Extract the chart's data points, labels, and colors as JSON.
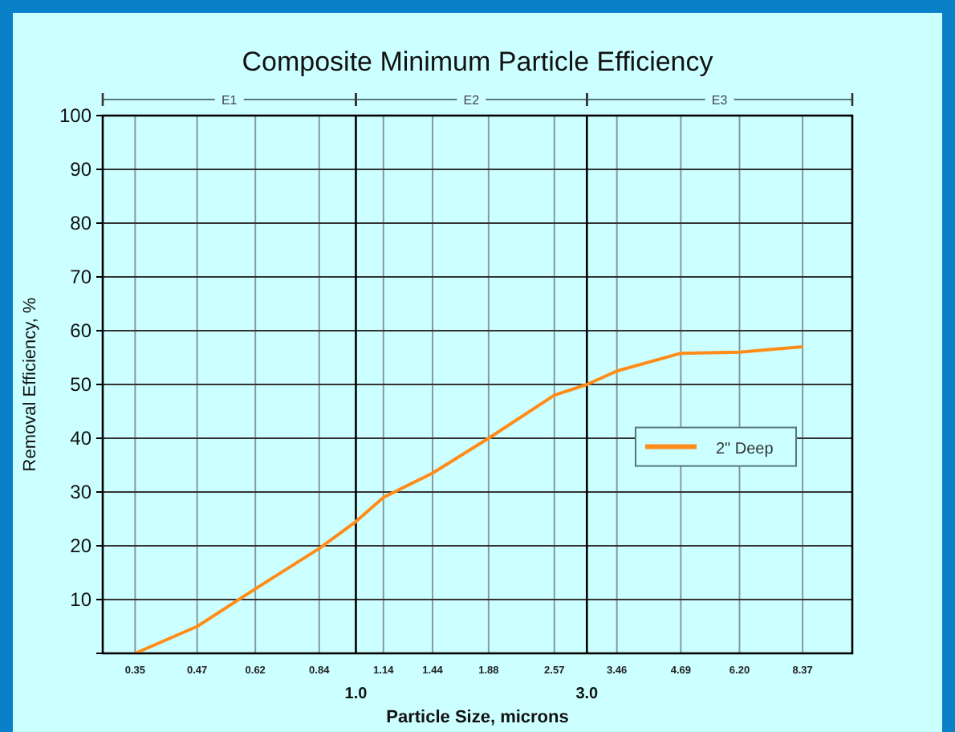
{
  "chart_data": {
    "type": "line",
    "title": "Composite Minimum Particle Efficiency",
    "xlabel": "Particle Size, microns",
    "ylabel": "Removal Efficiency, %",
    "log": "x",
    "x": [
      0.35,
      0.47,
      0.62,
      0.84,
      1.0,
      1.14,
      1.44,
      1.88,
      2.57,
      3.0,
      3.46,
      4.69,
      6.2,
      8.37
    ],
    "series": [
      {
        "name": "2\" Deep",
        "color": "#ff8c1a",
        "values": [
          0,
          5,
          12,
          19.5,
          24.5,
          29,
          33.5,
          40,
          48,
          50,
          52.5,
          55.8,
          56,
          57
        ]
      }
    ],
    "xlim": [
      0.3,
      10.6
    ],
    "xticks": [
      {
        "value": 0.35,
        "label": "0.35"
      },
      {
        "value": 0.47,
        "label": "0.47"
      },
      {
        "value": 0.62,
        "label": "0.62"
      },
      {
        "value": 0.84,
        "label": "0.84"
      },
      {
        "value": 1.14,
        "label": "1.14"
      },
      {
        "value": 1.44,
        "label": "1.44"
      },
      {
        "value": 1.88,
        "label": "1.88"
      },
      {
        "value": 2.57,
        "label": "2.57"
      },
      {
        "value": 3.46,
        "label": "3.46"
      },
      {
        "value": 4.69,
        "label": "4.69"
      },
      {
        "value": 6.2,
        "label": "6.20"
      },
      {
        "value": 8.37,
        "label": "8.37"
      }
    ],
    "ylim": [
      0,
      100
    ],
    "yticks": [
      10,
      20,
      30,
      40,
      50,
      60,
      70,
      80,
      90,
      100
    ],
    "ref_lines": [
      {
        "axis": "x",
        "value": 1.0,
        "label": "1.0"
      },
      {
        "axis": "x",
        "value": 3.0,
        "label": "3.0"
      }
    ],
    "annotations": [
      "E1",
      "E2",
      "E3"
    ],
    "grid": true,
    "legend": "right",
    "marker": "none",
    "line_style": "solid"
  }
}
